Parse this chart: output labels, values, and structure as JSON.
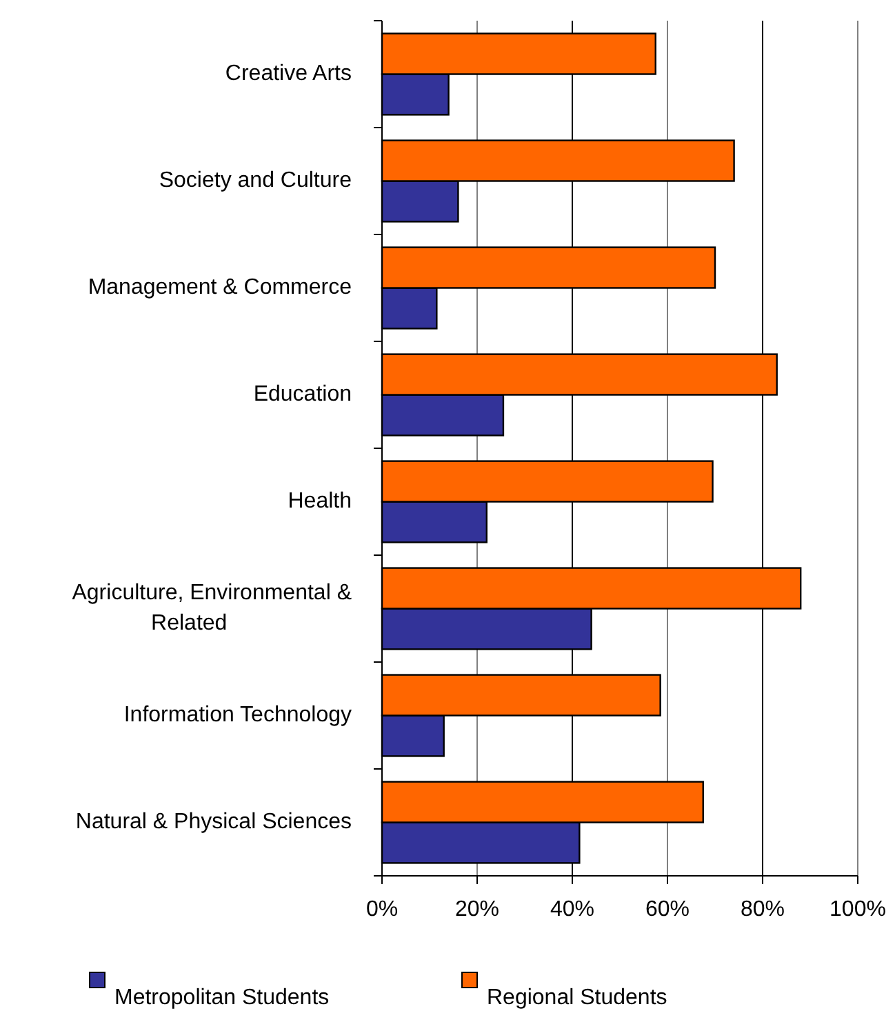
{
  "chart_data": {
    "type": "bar",
    "orientation": "horizontal",
    "categories": [
      "Creative Arts",
      "Society and Culture",
      "Management & Commerce",
      "Education",
      "Health",
      "Agriculture, Environmental & Related",
      "Information Technology",
      "Natural & Physical Sciences"
    ],
    "series": [
      {
        "name": "Metropolitan Students",
        "color": "#333399",
        "values": [
          14,
          16,
          11.5,
          25.5,
          22,
          44,
          13,
          41.5
        ]
      },
      {
        "name": "Regional Students",
        "color": "#ff6600",
        "values": [
          57.5,
          74,
          70,
          83,
          69.5,
          88,
          58.5,
          67.5
        ]
      }
    ],
    "xlim": [
      0,
      100
    ],
    "xticks": [
      {
        "value": 0,
        "label": "0%"
      },
      {
        "value": 20,
        "label": "20%"
      },
      {
        "value": 40,
        "label": "40%"
      },
      {
        "value": 60,
        "label": "60%"
      },
      {
        "value": 80,
        "label": "80%"
      },
      {
        "value": 100,
        "label": "100%"
      }
    ],
    "grid": "x",
    "legend": "bottom"
  }
}
